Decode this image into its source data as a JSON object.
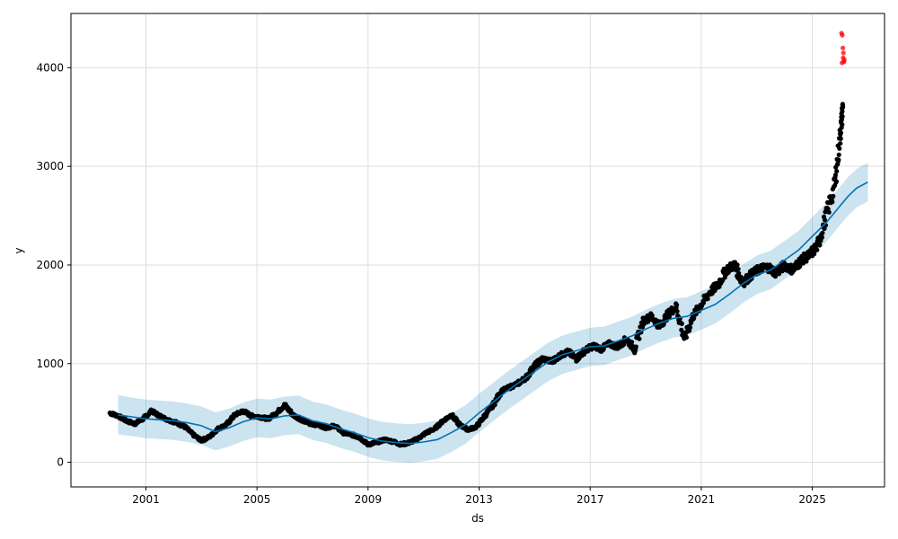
{
  "chart_data": {
    "type": "scatter",
    "title": "",
    "xlabel": "ds",
    "ylabel": "y",
    "xlim": [
      1998.3,
      2027.6
    ],
    "ylim": [
      -250,
      4550
    ],
    "grid": true,
    "x_ticks": [
      {
        "value": 2001,
        "label": "2001"
      },
      {
        "value": 2005,
        "label": "2005"
      },
      {
        "value": 2009,
        "label": "2009"
      },
      {
        "value": 2013,
        "label": "2013"
      },
      {
        "value": 2017,
        "label": "2017"
      },
      {
        "value": 2021,
        "label": "2021"
      },
      {
        "value": 2025,
        "label": "2025"
      }
    ],
    "y_ticks": [
      {
        "value": 0,
        "label": "0"
      },
      {
        "value": 1000,
        "label": "1000"
      },
      {
        "value": 2000,
        "label": "2000"
      },
      {
        "value": 3000,
        "label": "3000"
      },
      {
        "value": 4000,
        "label": "4000"
      }
    ],
    "colors": {
      "observed": "#000000",
      "forecast": "#0072B2",
      "uncertainty": "#0072B2",
      "anomaly": "#ff0000",
      "grid": "#dddddd"
    },
    "series": [
      {
        "kind": "forecast_line",
        "x": [
          2000.0,
          2000.5,
          2001.0,
          2001.5,
          2002.0,
          2002.5,
          2003.0,
          2003.5,
          2004.0,
          2004.5,
          2005.0,
          2005.5,
          2006.0,
          2006.5,
          2007.0,
          2007.5,
          2008.0,
          2008.5,
          2009.0,
          2009.5,
          2010.0,
          2010.5,
          2011.0,
          2011.5,
          2012.0,
          2012.5,
          2013.0,
          2013.5,
          2014.0,
          2014.5,
          2015.0,
          2015.5,
          2016.0,
          2016.5,
          2017.0,
          2017.5,
          2018.0,
          2018.5,
          2019.0,
          2019.5,
          2020.0,
          2020.5,
          2021.0,
          2021.5,
          2022.0,
          2022.5,
          2023.0,
          2023.5,
          2024.0,
          2024.5,
          2025.0,
          2025.5,
          2026.0,
          2026.3,
          2026.6,
          2027.0
        ],
        "y": [
          480,
          460,
          440,
          430,
          420,
          400,
          370,
          310,
          350,
          410,
          450,
          440,
          470,
          480,
          420,
          390,
          340,
          300,
          250,
          215,
          200,
          190,
          205,
          230,
          300,
          380,
          500,
          610,
          720,
          820,
          920,
          1020,
          1090,
          1130,
          1170,
          1180,
          1230,
          1280,
          1350,
          1410,
          1460,
          1480,
          1540,
          1600,
          1700,
          1810,
          1900,
          1950,
          2050,
          2150,
          2290,
          2430,
          2600,
          2700,
          2780,
          2840
        ]
      },
      {
        "kind": "uncertainty_band",
        "x": [
          2000.0,
          2000.5,
          2001.0,
          2001.5,
          2002.0,
          2002.5,
          2003.0,
          2003.5,
          2004.0,
          2004.5,
          2005.0,
          2005.5,
          2006.0,
          2006.5,
          2007.0,
          2007.5,
          2008.0,
          2008.5,
          2009.0,
          2009.5,
          2010.0,
          2010.5,
          2011.0,
          2011.5,
          2012.0,
          2012.5,
          2013.0,
          2013.5,
          2014.0,
          2014.5,
          2015.0,
          2015.5,
          2016.0,
          2016.5,
          2017.0,
          2017.5,
          2018.0,
          2018.5,
          2019.0,
          2019.5,
          2020.0,
          2020.5,
          2021.0,
          2021.5,
          2022.0,
          2022.5,
          2023.0,
          2023.5,
          2024.0,
          2024.5,
          2025.0,
          2025.5,
          2026.0,
          2026.3,
          2026.6,
          2027.0
        ],
        "lower": [
          280,
          265,
          245,
          235,
          225,
          205,
          175,
          120,
          160,
          215,
          255,
          245,
          275,
          285,
          225,
          195,
          145,
          105,
          55,
          20,
          5,
          -5,
          10,
          35,
          105,
          185,
          305,
          415,
          525,
          625,
          725,
          825,
          895,
          935,
          975,
          985,
          1035,
          1085,
          1155,
          1215,
          1265,
          1285,
          1345,
          1405,
          1505,
          1615,
          1705,
          1755,
          1855,
          1955,
          2095,
          2235,
          2405,
          2505,
          2585,
          2645
        ],
        "upper": [
          680,
          655,
          635,
          625,
          615,
          595,
          565,
          505,
          545,
          605,
          645,
          635,
          665,
          675,
          615,
          585,
          535,
          495,
          445,
          410,
          395,
          385,
          400,
          425,
          495,
          575,
          695,
          805,
          915,
          1015,
          1115,
          1215,
          1285,
          1325,
          1365,
          1375,
          1425,
          1475,
          1545,
          1605,
          1655,
          1675,
          1735,
          1795,
          1895,
          2005,
          2095,
          2145,
          2245,
          2345,
          2485,
          2625,
          2795,
          2895,
          2975,
          3035
        ]
      },
      {
        "kind": "observed",
        "x": [
          1999.7,
          2000.0,
          2000.3,
          2000.6,
          2000.9,
          2001.2,
          2001.5,
          2001.8,
          2002.1,
          2002.4,
          2002.7,
          2003.0,
          2003.3,
          2003.6,
          2003.9,
          2004.2,
          2004.5,
          2004.8,
          2005.1,
          2005.4,
          2005.7,
          2006.0,
          2006.3,
          2006.6,
          2006.9,
          2007.2,
          2007.5,
          2007.8,
          2008.1,
          2008.4,
          2008.7,
          2009.0,
          2009.3,
          2009.6,
          2009.9,
          2010.2,
          2010.5,
          2010.8,
          2011.1,
          2011.4,
          2011.7,
          2012.0,
          2012.3,
          2012.6,
          2012.9,
          2013.2,
          2013.5,
          2013.8,
          2014.1,
          2014.4,
          2014.7,
          2015.0,
          2015.3,
          2015.6,
          2015.9,
          2016.2,
          2016.5,
          2016.8,
          2017.1,
          2017.4,
          2017.7,
          2018.0,
          2018.3,
          2018.6,
          2018.9,
          2019.2,
          2019.5,
          2019.8,
          2020.1,
          2020.4,
          2020.7,
          2021.0,
          2021.3,
          2021.6,
          2021.9,
          2022.2,
          2022.5,
          2022.8,
          2023.1,
          2023.4,
          2023.7,
          2024.0,
          2024.3,
          2024.6,
          2024.9,
          2025.2,
          2025.5,
          2025.8,
          2026.0,
          2026.1
        ],
        "y": [
          500,
          470,
          420,
          390,
          440,
          520,
          470,
          430,
          400,
          360,
          280,
          220,
          260,
          340,
          380,
          480,
          520,
          470,
          460,
          440,
          500,
          580,
          480,
          430,
          390,
          380,
          350,
          370,
          300,
          280,
          250,
          180,
          200,
          230,
          210,
          180,
          200,
          240,
          300,
          340,
          420,
          480,
          380,
          330,
          360,
          470,
          580,
          720,
          760,
          800,
          860,
          980,
          1050,
          1020,
          1080,
          1120,
          1050,
          1130,
          1180,
          1150,
          1200,
          1170,
          1250,
          1150,
          1430,
          1480,
          1380,
          1500,
          1580,
          1250,
          1480,
          1600,
          1720,
          1800,
          1950,
          2000,
          1820,
          1900,
          1960,
          1980,
          1920,
          2000,
          1950,
          2050,
          2100,
          2200,
          2500,
          2800,
          3300,
          3600
        ]
      },
      {
        "kind": "anomaly",
        "x": [
          2026.05,
          2026.08,
          2026.1,
          2026.12,
          2026.15,
          2026.07,
          2026.11,
          2026.14
        ],
        "y": [
          4350,
          4330,
          4200,
          4150,
          4080,
          4050,
          4100,
          4060
        ]
      }
    ]
  }
}
